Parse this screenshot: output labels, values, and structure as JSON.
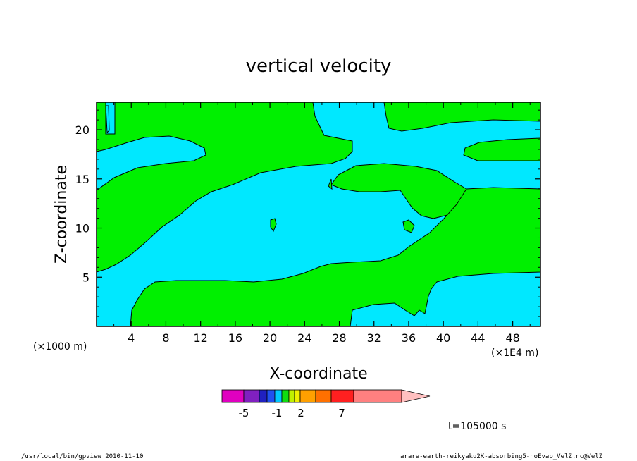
{
  "chart_data": {
    "type": "heatmap",
    "title": "vertical velocity",
    "xlabel": "X-coordinate",
    "ylabel": "Z-coordinate",
    "x_unit_left": "(×1000 m)",
    "x_unit_right": "(×1E4 m)",
    "x_ticks": [
      "4",
      "8",
      "12",
      "16",
      "20",
      "24",
      "28",
      "32",
      "36",
      "40",
      "44",
      "48"
    ],
    "y_ticks": [
      "5",
      "10",
      "15",
      "20"
    ],
    "xlim": [
      0,
      51.2
    ],
    "ylim": [
      0,
      22.8
    ],
    "colorbar": {
      "colors": [
        "#e000c0",
        "#8020c0",
        "#2020c0",
        "#2050f0",
        "#00c8ff",
        "#10dd10",
        "#c0f000",
        "#f0f000",
        "#ffa000",
        "#ff7000",
        "#ff2020",
        "#ff8080",
        "#ffc0c0"
      ],
      "labels": [
        "-5",
        "-1",
        "2",
        "7"
      ]
    },
    "regions": {
      "negative_color": "#00e8ff",
      "positive_color": "#00f000"
    }
  },
  "time_label": "t=105000 s",
  "footer": {
    "left": "/usr/local/bin/gpview 2010-11-10",
    "right": "arare-earth-reikyaku2K-absorbing5-noEvap_VelZ.nc@VelZ"
  }
}
